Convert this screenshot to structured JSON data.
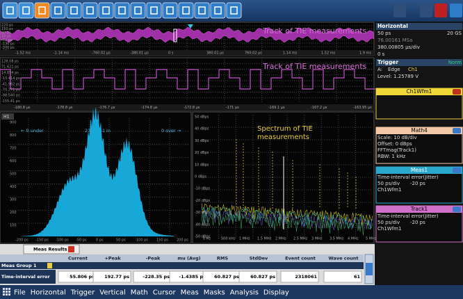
{
  "track_top": {
    "title": "Track of TIE measurements",
    "yticks": [
      "220 ps",
      "150 ps",
      "80 ps",
      "10 ps",
      "-60 ps",
      "-130 ps",
      "-200 ps",
      "-270 ps"
    ],
    "xticks": [
      "-1.52 ms",
      "-1.14 ms",
      "-760.02 µs",
      "-380.01 µs",
      "0 s",
      "380.01 µs",
      "760.02 µs",
      "1.14 ms",
      "1.52 ms",
      "1.9 ms"
    ]
  },
  "track_zoom": {
    "title": "Track of TIE measurements",
    "yticks": [
      "128.08 ps",
      "71.621 ps",
      "14.854 ps",
      "-13.414 ps",
      "-41.982 ps",
      "-70.271 ps",
      "-98.540 ps",
      "-155.41 ps"
    ],
    "xticks": [
      "-180.8 µs",
      "-178.8 µs",
      "-176.7 µs",
      "-174.8 µs",
      "-172.8 µs",
      "-171 µs",
      "-169.1 µs",
      "-167.2 µs",
      "-163.95 µs"
    ]
  },
  "histogram": {
    "label": "H1",
    "under": "← 0 under",
    "in": "2318061 in",
    "over": "0 over →",
    "yticks": [
      "900",
      "800",
      "700",
      "600",
      "500",
      "400",
      "300",
      "200",
      "100"
    ],
    "xticks": [
      "-200 ps",
      "-150 ps",
      "-100 ps",
      "-50 ps",
      "0 ps",
      "50 ps",
      "100 ps",
      "150 ps",
      "200 ps"
    ]
  },
  "spectrum": {
    "title": [
      "Spectrum of TIE",
      "measurements"
    ],
    "yticks": [
      "50 dBps",
      "40 dBps",
      "30 dBps",
      "20 dBps",
      "10 dBps",
      "0 dBps",
      "-10 dBps",
      "-20 dBps",
      "-30 dBps",
      "-40 dBps",
      "-50 dBps"
    ],
    "xticks": [
      "0 Hz",
      "500 kHz",
      "1 MHz",
      "1.5 MHz",
      "2 MHz",
      "2.5 MHz",
      "3 MHz",
      "3.5 MHz",
      "4 MHz",
      "5 MHz"
    ]
  },
  "sidebar": {
    "horizontal": {
      "title": "Horizontal",
      "resolution": "50 ps",
      "rate": "20 GS",
      "record": "76.00161 MSa",
      "scale": "380.00805 µs/div",
      "position": "0 s"
    },
    "trigger": {
      "title": "Trigger",
      "mode": "Norm",
      "source_label": "A:",
      "type": "Edge",
      "source": "Ch1",
      "level": "Level: 1.25789 V"
    },
    "ch1": {
      "title": "Ch1Wfm1"
    },
    "math4": {
      "title": "Math4",
      "lines": [
        "Scale: 10 dB/div",
        "Offset: 0 dBps",
        "FFTmag(Track1)",
        "RBW: 1 kHz"
      ]
    },
    "meas1": {
      "title": "Meas1",
      "lines": [
        "Time-interval error(Jitter)"
      ],
      "scale": "50 ps/div",
      "offset": "-20 ps",
      "source": "Ch1Wfm1"
    },
    "track1": {
      "title": "Track1",
      "lines": [
        "Time-interval error(Jitter)"
      ],
      "scale": "50 ps/div",
      "offset": "-20 ps",
      "source": "Ch1Wfm1"
    }
  },
  "results": {
    "tab": "Meas Results",
    "headers": [
      "Current",
      "+Peak",
      "-Peak",
      "mu (Avg)",
      "RMS",
      "StdDev",
      "Event count",
      "Wave count"
    ],
    "group": "Meas Group 1",
    "row_label": "Time-interval error",
    "row": [
      "55.806 ps",
      "192.77 ps",
      "-228.35 ps",
      "-1.4385 ps",
      "60.827 ps",
      "60.827 ps",
      "2318061",
      "61"
    ]
  },
  "menu": [
    "File",
    "Horizontal",
    "Trigger",
    "Vertical",
    "Math",
    "Cursor",
    "Meas",
    "Masks",
    "Analysis",
    "Display"
  ]
}
